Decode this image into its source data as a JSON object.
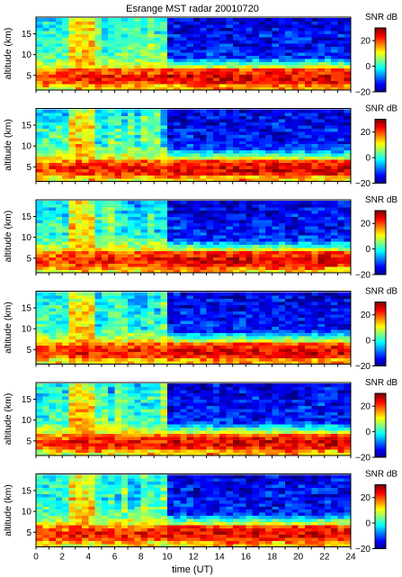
{
  "title": "Esrange MST radar 20010720",
  "colors": {
    "text": "#000000",
    "frame": "#000000",
    "background": "#ffffff"
  },
  "chart_data": {
    "type": "heatmap",
    "title": "Esrange MST radar 20010720",
    "xlabel": "time (UT)",
    "ylabel": "altitude (km)",
    "xlim": [
      0,
      24
    ],
    "ylim": [
      1.5,
      19
    ],
    "xticks": [
      "0",
      "2",
      "4",
      "6",
      "8",
      "10",
      "12",
      "14",
      "16",
      "18",
      "20",
      "22",
      "24"
    ],
    "yticks": [
      "5",
      "10",
      "15"
    ],
    "colorbar": {
      "label": "SNR dB",
      "range": [
        -20,
        30
      ],
      "ticks": [
        "20",
        "0",
        "−20"
      ],
      "colormap": "jet"
    },
    "time_step_h": 0.5,
    "altitude_step_km": 0.75,
    "panels": [
      {
        "ylabel": "altitude (km)",
        "day_profile": [
          0,
          0,
          0,
          0,
          0,
          0,
          0,
          0,
          0,
          0,
          0,
          0
        ]
      },
      {
        "ylabel": "altitude (km)",
        "day_profile": [
          0,
          0,
          0,
          0,
          0,
          0,
          0,
          0,
          0,
          0,
          0,
          0
        ]
      },
      {
        "ylabel": "altitude (km)",
        "day_profile": [
          0,
          0,
          0,
          0,
          0,
          0,
          0,
          0,
          0,
          0,
          0,
          0
        ]
      },
      {
        "ylabel": "altitude (km)",
        "day_profile": [
          0,
          0,
          0,
          0,
          0,
          0,
          0,
          0,
          0,
          0,
          0,
          0
        ]
      },
      {
        "ylabel": "altitude (km)",
        "day_profile": [
          0,
          0,
          0,
          0,
          0,
          0,
          0,
          0,
          0,
          0,
          0,
          0
        ]
      },
      {
        "ylabel": "altitude (km)",
        "day_profile": [
          0,
          0,
          0,
          0,
          0,
          0,
          0,
          0,
          0,
          0,
          0,
          0
        ]
      }
    ],
    "profile_segments": [
      {
        "t_start": 0,
        "t_end": 2.5,
        "snr_aloft_db": 2,
        "snr_low_db": 22
      },
      {
        "t_start": 2.5,
        "t_end": 4.5,
        "snr_aloft_db": 14,
        "snr_low_db": 24
      },
      {
        "t_start": 4.5,
        "t_end": 10,
        "snr_aloft_db": 3,
        "snr_low_db": 24
      },
      {
        "t_start": 10,
        "t_end": 24,
        "snr_aloft_db": -12,
        "snr_low_db": 26
      }
    ]
  }
}
